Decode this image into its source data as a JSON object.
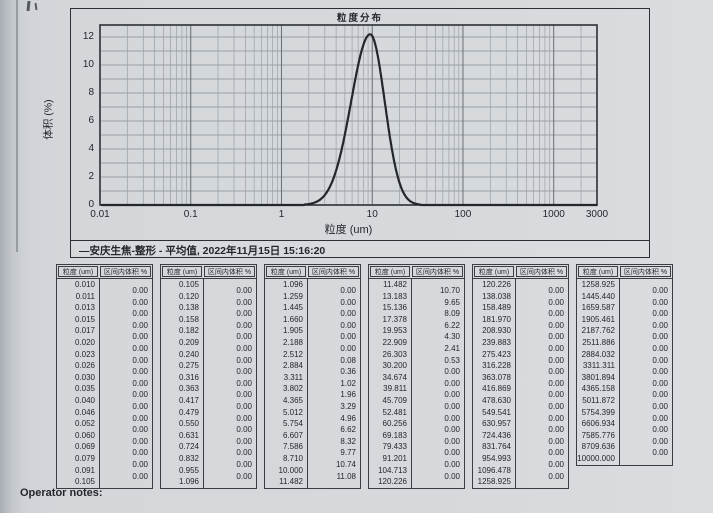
{
  "theme": {
    "paper": "#d4d7da",
    "ink": "#23262b",
    "grid_minor": "#9aa0a6",
    "grid_major": "#686d73",
    "grid_horizontal": "#868c92",
    "curve": "#23262b",
    "border": "#3a3e44"
  },
  "chart": {
    "title": "粒度分布",
    "ylabel": "体积 (%)",
    "xlabel": "粒度 (um)",
    "legend": "—安庆生焦-整形 - 平均值, 2022年11月15日 15:16:20"
  },
  "chart_data": {
    "type": "line",
    "title": "粒度分布",
    "xlabel": "粒度 (um)",
    "ylabel": "体积 (%)",
    "x_scale": "log",
    "xlim": [
      0.01,
      3000
    ],
    "ylim": [
      0,
      12.86
    ],
    "x_tick_labels": [
      "0.01",
      "0.1",
      "1",
      "10",
      "100",
      "1000",
      "3000"
    ],
    "x_tick_values": [
      0.01,
      0.1,
      1,
      10,
      100,
      1000,
      3000
    ],
    "y_tick_values": [
      0,
      2,
      4,
      6,
      8,
      10,
      12
    ],
    "grid": "on",
    "legend_position": "bottom-bar",
    "legend": [
      "—安庆生焦-整形 - 平均值, 2022年11月15日 15:16:20"
    ],
    "series": [
      {
        "name": "安庆生焦-整形 - 平均值",
        "x_um": [
          2.69,
          3.09,
          3.55,
          4.07,
          4.68,
          5.37,
          6.16,
          7.08,
          8.13,
          9.33,
          10.72,
          12.3,
          14.13,
          16.22,
          18.62,
          21.38,
          24.54,
          28.18
        ],
        "volume_pct": [
          0.08,
          0.36,
          1.02,
          1.96,
          3.29,
          4.96,
          6.62,
          8.32,
          9.77,
          10.74,
          11.08,
          10.7,
          9.65,
          8.09,
          6.22,
          4.3,
          2.41,
          0.53
        ]
      }
    ],
    "curve_render": {
      "peak_x_um": 9.5,
      "peak_y_pct": 12.2,
      "sigma_left_log10": 0.21,
      "sigma_right_log10": 0.16
    }
  },
  "tables": {
    "header": {
      "size": "粒度 (um)",
      "volume": "区间内体积 %"
    },
    "columns": [
      {
        "sizes": [
          "0.010",
          "0.011",
          "0.013",
          "0.015",
          "0.017",
          "0.020",
          "0.023",
          "0.026",
          "0.030",
          "0.035",
          "0.040",
          "0.046",
          "0.052",
          "0.060",
          "0.069",
          "0.079",
          "0.091",
          "0.105"
        ],
        "values": [
          "0.00",
          "0.00",
          "0.00",
          "0.00",
          "0.00",
          "0.00",
          "0.00",
          "0.00",
          "0.00",
          "0.00",
          "0.00",
          "0.00",
          "0.00",
          "0.00",
          "0.00",
          "0.00",
          "0.00"
        ]
      },
      {
        "sizes": [
          "0.105",
          "0.120",
          "0.138",
          "0.158",
          "0.182",
          "0.209",
          "0.240",
          "0.275",
          "0.316",
          "0.363",
          "0.417",
          "0.479",
          "0.550",
          "0.631",
          "0.724",
          "0.832",
          "0.955",
          "1.096"
        ],
        "values": [
          "0.00",
          "0.00",
          "0.00",
          "0.00",
          "0.00",
          "0.00",
          "0.00",
          "0.00",
          "0.00",
          "0.00",
          "0.00",
          "0.00",
          "0.00",
          "0.00",
          "0.00",
          "0.00",
          "0.00"
        ]
      },
      {
        "sizes": [
          "1.096",
          "1.259",
          "1.445",
          "1.660",
          "1.905",
          "2.188",
          "2.512",
          "2.884",
          "3.311",
          "3.802",
          "4.365",
          "5.012",
          "5.754",
          "6.607",
          "7.586",
          "8.710",
          "10.000",
          "11.482"
        ],
        "values": [
          "0.00",
          "0.00",
          "0.00",
          "0.00",
          "0.00",
          "0.00",
          "0.08",
          "0.36",
          "1.02",
          "1.96",
          "3.29",
          "4.96",
          "6.62",
          "8.32",
          "9.77",
          "10.74",
          "11.08"
        ]
      },
      {
        "sizes": [
          "11.482",
          "13.183",
          "15.136",
          "17.378",
          "19.953",
          "22.909",
          "26.303",
          "30.200",
          "34.674",
          "39.811",
          "45.709",
          "52.481",
          "60.256",
          "69.183",
          "79.433",
          "91.201",
          "104.713",
          "120.226"
        ],
        "values": [
          "10.70",
          "9.65",
          "8.09",
          "6.22",
          "4.30",
          "2.41",
          "0.53",
          "0.00",
          "0.00",
          "0.00",
          "0.00",
          "0.00",
          "0.00",
          "0.00",
          "0.00",
          "0.00",
          "0.00"
        ]
      },
      {
        "sizes": [
          "120.226",
          "138.038",
          "158.489",
          "181.970",
          "208.930",
          "239.883",
          "275.423",
          "316.228",
          "363.078",
          "416.869",
          "478.630",
          "549.541",
          "630.957",
          "724.436",
          "831.764",
          "954.993",
          "1096.478",
          "1258.925"
        ],
        "values": [
          "0.00",
          "0.00",
          "0.00",
          "0.00",
          "0.00",
          "0.00",
          "0.00",
          "0.00",
          "0.00",
          "0.00",
          "0.00",
          "0.00",
          "0.00",
          "0.00",
          "0.00",
          "0.00",
          "0.00"
        ]
      },
      {
        "sizes": [
          "1258.925",
          "1445.440",
          "1659.587",
          "1905.461",
          "2187.762",
          "2511.886",
          "2884.032",
          "3311.311",
          "3801.894",
          "4365.158",
          "5011.872",
          "5754.399",
          "6606.934",
          "7585.776",
          "8709.636",
          "10000.000"
        ],
        "values": [
          "0.00",
          "0.00",
          "0.00",
          "0.00",
          "0.00",
          "0.00",
          "0.00",
          "0.00",
          "0.00",
          "0.00",
          "0.00",
          "0.00",
          "0.00",
          "0.00",
          "0.00"
        ]
      }
    ]
  },
  "footer": {
    "operator_notes_label": "Operator notes:"
  }
}
